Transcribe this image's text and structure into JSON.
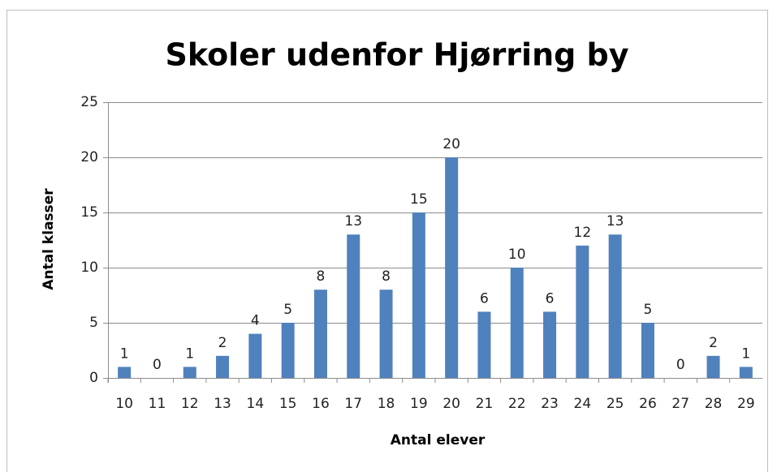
{
  "chart_data": {
    "type": "bar",
    "title": "Skoler udenfor Hjørring by",
    "x_label": "Antal elever",
    "y_label": "Antal klasser",
    "categories": [
      "10",
      "11",
      "12",
      "13",
      "14",
      "15",
      "16",
      "17",
      "18",
      "19",
      "20",
      "21",
      "22",
      "23",
      "24",
      "25",
      "26",
      "27",
      "28",
      "29"
    ],
    "values": [
      1,
      0,
      1,
      2,
      4,
      5,
      8,
      13,
      8,
      15,
      20,
      6,
      10,
      6,
      12,
      13,
      5,
      0,
      2,
      1
    ],
    "color": "#4f81bd",
    "ylim": [
      0,
      25
    ],
    "yticks": [
      0,
      5,
      10,
      15,
      20,
      25
    ],
    "grid": true
  }
}
